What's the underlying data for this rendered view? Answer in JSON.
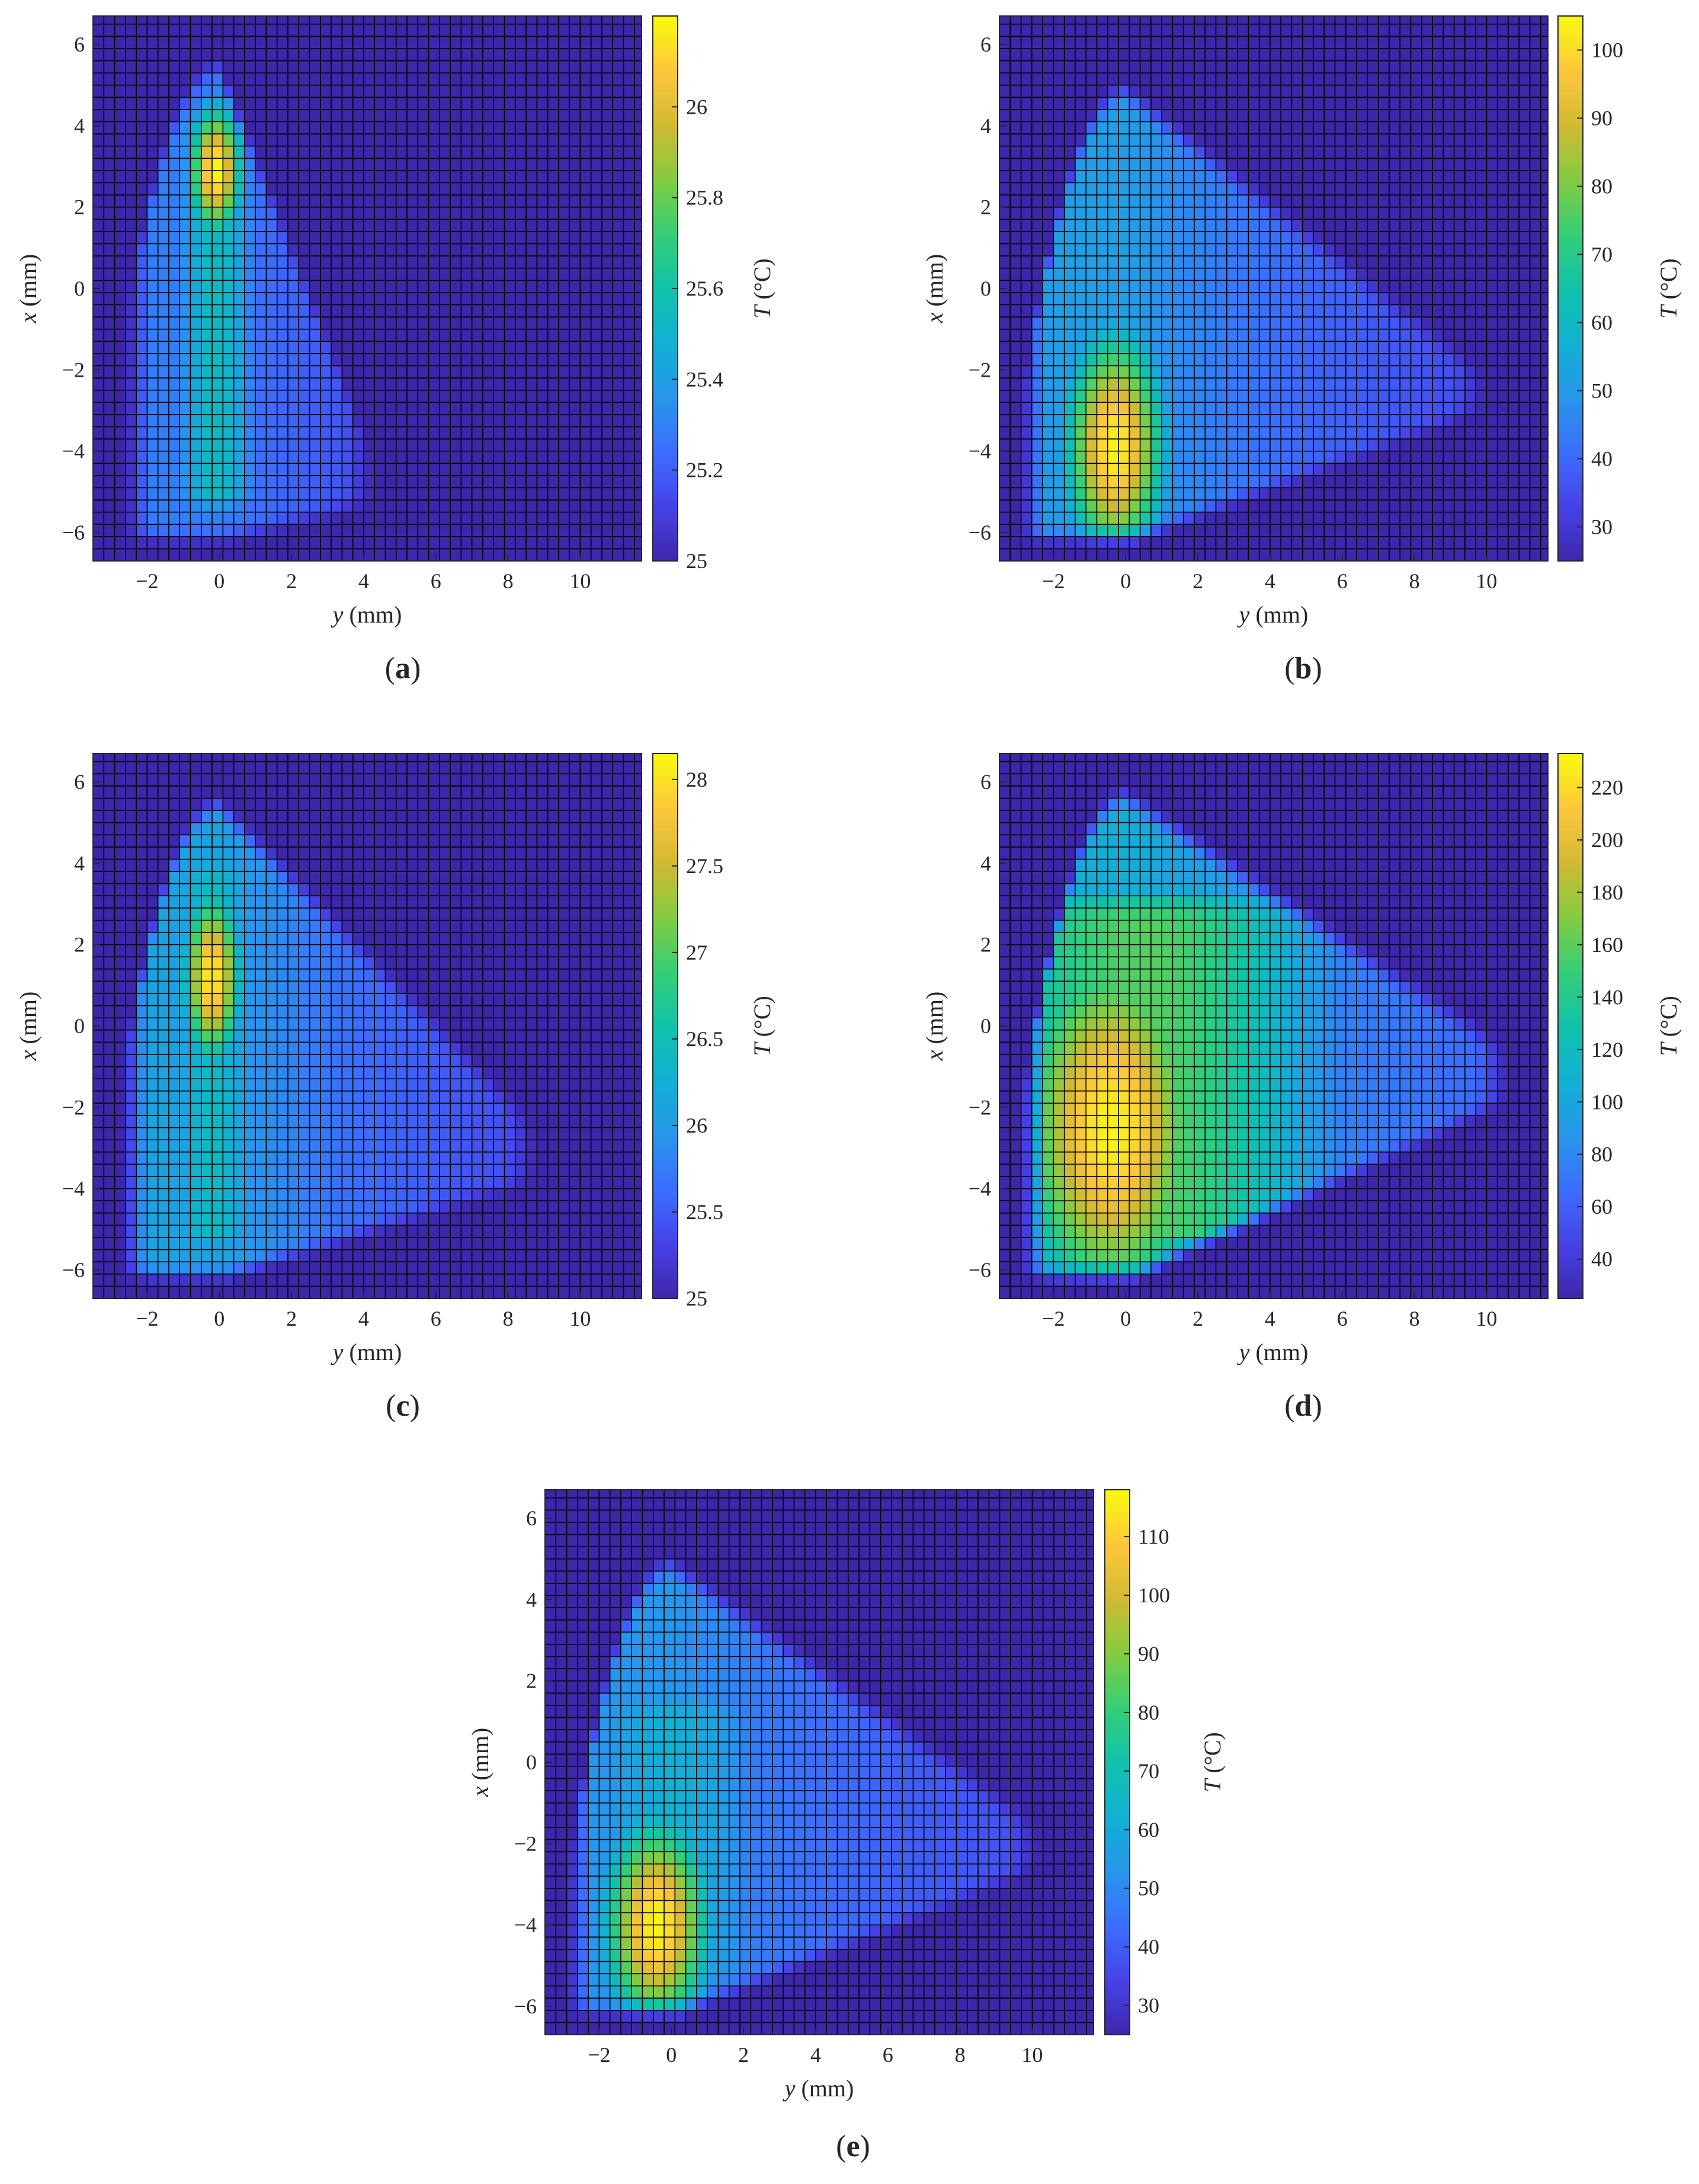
{
  "chart_data": [
    {
      "id": "a",
      "type": "heatmap",
      "panel_label_open": "(",
      "panel_label_letter": "a",
      "panel_label_close": ")",
      "xlabel_var": "y",
      "xlabel_unit": " (mm)",
      "ylabel_var": "x",
      "ylabel_unit": " (mm)",
      "colorbar_label_var": "T",
      "colorbar_label_unit": " (°C)",
      "xlim": [
        -3.5,
        11.7
      ],
      "ylim": [
        -6.7,
        6.7
      ],
      "x_ticks": [
        -2,
        0,
        2,
        4,
        6,
        8,
        10
      ],
      "x_tick_labels": [
        "−2",
        "0",
        "2",
        "4",
        "6",
        "8",
        "10"
      ],
      "y_ticks": [
        -6,
        -4,
        -2,
        0,
        2,
        4,
        6
      ],
      "y_tick_labels": [
        "−6",
        "−4",
        "−2",
        "0",
        "2",
        "4",
        "6"
      ],
      "clim": [
        25,
        26.2
      ],
      "colorbar_ticks": [
        25,
        25.2,
        25.4,
        25.6,
        25.8,
        26
      ],
      "colorbar_tick_labels": [
        "25",
        "25.2",
        "25.4",
        "25.6",
        "25.8",
        "26"
      ],
      "colormap": "parula",
      "grid": true,
      "field": {
        "ambient": 25,
        "max": 26.2,
        "boundary": {
          "apex_x": 5.6,
          "tip_y": 4.5,
          "tip_x": -4.6,
          "bottom_x": -6.2,
          "left_y": -2.4,
          "lower_slope": 0.22
        },
        "hotspots": [
          {
            "y": -0.1,
            "x": 2.9,
            "sy": 0.55,
            "sx": 1.2,
            "amp": 1.0
          }
        ],
        "body": {
          "cx": -0.1,
          "sy": 0.9,
          "amp": 0.45,
          "x_low": -6.0,
          "x_high": 5.2
        },
        "wing": {
          "amp": 0.18,
          "scale": 4.0
        }
      }
    },
    {
      "id": "b",
      "type": "heatmap",
      "panel_label_open": "(",
      "panel_label_letter": "b",
      "panel_label_close": ")",
      "xlabel_var": "y",
      "xlabel_unit": " (mm)",
      "ylabel_var": "x",
      "ylabel_unit": " (mm)",
      "colorbar_label_var": "T",
      "colorbar_label_unit": " (°C)",
      "xlim": [
        -3.5,
        11.7
      ],
      "ylim": [
        -6.7,
        6.7
      ],
      "x_ticks": [
        -2,
        0,
        2,
        4,
        6,
        8,
        10
      ],
      "x_tick_labels": [
        "−2",
        "0",
        "2",
        "4",
        "6",
        "8",
        "10"
      ],
      "y_ticks": [
        -6,
        -4,
        -2,
        0,
        2,
        4,
        6
      ],
      "y_tick_labels": [
        "−6",
        "−4",
        "−2",
        "0",
        "2",
        "4",
        "6"
      ],
      "clim": [
        25,
        105
      ],
      "colorbar_ticks": [
        30,
        40,
        50,
        60,
        70,
        80,
        90,
        100
      ],
      "colorbar_tick_labels": [
        "30",
        "40",
        "50",
        "60",
        "70",
        "80",
        "90",
        "100"
      ],
      "colormap": "parula",
      "grid": true,
      "field": {
        "ambient": 25,
        "max": 104,
        "boundary": {
          "apex_x": 5.0,
          "tip_y": 10.2,
          "tip_x": -2.2,
          "bottom_x": -6.2,
          "left_y": -2.7,
          "lower_slope": 0.33
        },
        "hotspots": [
          {
            "y": -0.3,
            "x": -3.9,
            "sy": 1.05,
            "sx": 2.2,
            "amp": 1.0
          }
        ],
        "body": {
          "cx": -0.2,
          "sy": 1.6,
          "amp": 0.3,
          "x_low": -6.0,
          "x_high": 3.5
        },
        "wing": {
          "amp": 0.28,
          "scale": 6.0
        }
      }
    },
    {
      "id": "c",
      "type": "heatmap",
      "panel_label_open": "(",
      "panel_label_letter": "c",
      "panel_label_close": ")",
      "xlabel_var": "y",
      "xlabel_unit": " (mm)",
      "ylabel_var": "x",
      "ylabel_unit": " (mm)",
      "colorbar_label_var": "T",
      "colorbar_label_unit": " (°C)",
      "xlim": [
        -3.5,
        11.7
      ],
      "ylim": [
        -6.7,
        6.7
      ],
      "x_ticks": [
        -2,
        0,
        2,
        4,
        6,
        8,
        10
      ],
      "x_tick_labels": [
        "−2",
        "0",
        "2",
        "4",
        "6",
        "8",
        "10"
      ],
      "y_ticks": [
        -6,
        -4,
        -2,
        0,
        2,
        4,
        6
      ],
      "y_tick_labels": [
        "−6",
        "−4",
        "−2",
        "0",
        "2",
        "4",
        "6"
      ],
      "clim": [
        25,
        28.15
      ],
      "colorbar_ticks": [
        25,
        25.5,
        26,
        26.5,
        27,
        27.5,
        28
      ],
      "colorbar_tick_labels": [
        "25",
        "25.5",
        "26",
        "26.5",
        "27",
        "27.5",
        "28"
      ],
      "colormap": "parula",
      "grid": true,
      "field": {
        "ambient": 25,
        "max": 28.1,
        "boundary": {
          "apex_x": 5.6,
          "tip_y": 9.0,
          "tip_x": -2.6,
          "bottom_x": -6.2,
          "left_y": -2.5,
          "lower_slope": 0.28
        },
        "hotspots": [
          {
            "y": -0.2,
            "x": 1.2,
            "sy": 0.6,
            "sx": 1.6,
            "amp": 1.0
          }
        ],
        "body": {
          "cx": -0.2,
          "sy": 1.1,
          "amp": 0.45,
          "x_low": -6.0,
          "x_high": 5.0
        },
        "wing": {
          "amp": 0.3,
          "scale": 5.0
        }
      }
    },
    {
      "id": "d",
      "type": "heatmap",
      "panel_label_open": "(",
      "panel_label_letter": "d",
      "panel_label_close": ")",
      "xlabel_var": "y",
      "xlabel_unit": " (mm)",
      "ylabel_var": "x",
      "ylabel_unit": " (mm)",
      "colorbar_label_var": "T",
      "colorbar_label_unit": " (°C)",
      "xlim": [
        -3.5,
        11.7
      ],
      "ylim": [
        -6.7,
        6.7
      ],
      "x_ticks": [
        -2,
        0,
        2,
        4,
        6,
        8,
        10
      ],
      "x_tick_labels": [
        "−2",
        "0",
        "2",
        "4",
        "6",
        "8",
        "10"
      ],
      "y_ticks": [
        -6,
        -4,
        -2,
        0,
        2,
        4,
        6
      ],
      "y_tick_labels": [
        "−6",
        "−4",
        "−2",
        "0",
        "2",
        "4",
        "6"
      ],
      "clim": [
        25,
        233
      ],
      "colorbar_ticks": [
        40,
        60,
        80,
        100,
        120,
        140,
        160,
        180,
        200,
        220
      ],
      "colorbar_tick_labels": [
        "40",
        "60",
        "80",
        "100",
        "120",
        "140",
        "160",
        "180",
        "200",
        "220"
      ],
      "colormap": "parula",
      "grid": true,
      "field": {
        "ambient": 25,
        "max": 230,
        "boundary": {
          "apex_x": 5.8,
          "tip_y": 10.8,
          "tip_x": -0.6,
          "bottom_x": -6.2,
          "left_y": -2.7,
          "lower_slope": 0.42
        },
        "hotspots": [
          {
            "y": -0.4,
            "x": -2.5,
            "sy": 2.0,
            "sx": 3.5,
            "amp": 1.0
          }
        ],
        "body": {
          "cx": 0.5,
          "sy": 4.0,
          "amp": 0.65,
          "x_low": -6.0,
          "x_high": 4.0
        },
        "wing": {
          "amp": 0.35,
          "scale": 10.0
        }
      }
    },
    {
      "id": "e",
      "type": "heatmap",
      "panel_label_open": "(",
      "panel_label_letter": "e",
      "panel_label_close": ")",
      "xlabel_var": "y",
      "xlabel_unit": " (mm)",
      "ylabel_var": "x",
      "ylabel_unit": " (mm)",
      "colorbar_label_var": "T",
      "colorbar_label_unit": " (°C)",
      "xlim": [
        -3.5,
        11.7
      ],
      "ylim": [
        -6.7,
        6.7
      ],
      "x_ticks": [
        -2,
        0,
        2,
        4,
        6,
        8,
        10
      ],
      "x_tick_labels": [
        "−2",
        "0",
        "2",
        "4",
        "6",
        "8",
        "10"
      ],
      "y_ticks": [
        -6,
        -4,
        -2,
        0,
        2,
        4,
        6
      ],
      "y_tick_labels": [
        "−6",
        "−4",
        "−2",
        "0",
        "2",
        "4",
        "6"
      ],
      "clim": [
        25,
        118
      ],
      "colorbar_ticks": [
        30,
        40,
        50,
        60,
        70,
        80,
        90,
        100,
        110
      ],
      "colorbar_tick_labels": [
        "30",
        "40",
        "50",
        "60",
        "70",
        "80",
        "90",
        "100",
        "110"
      ],
      "colormap": "parula",
      "grid": true,
      "field": {
        "ambient": 25,
        "max": 117,
        "boundary": {
          "apex_x": 5.0,
          "tip_y": 10.4,
          "tip_x": -1.6,
          "bottom_x": -6.2,
          "left_y": -2.7,
          "lower_slope": 0.36
        },
        "hotspots": [
          {
            "y": -0.4,
            "x": -4.0,
            "sy": 1.1,
            "sx": 2.0,
            "amp": 1.0
          }
        ],
        "body": {
          "cx": 0.0,
          "sy": 2.2,
          "amp": 0.4,
          "x_low": -6.0,
          "x_high": 2.5
        },
        "wing": {
          "amp": 0.25,
          "scale": 7.0
        }
      }
    }
  ],
  "colors": {
    "ambient": "#3e26a8",
    "grid_line": "#000000",
    "axis": "#262626"
  }
}
